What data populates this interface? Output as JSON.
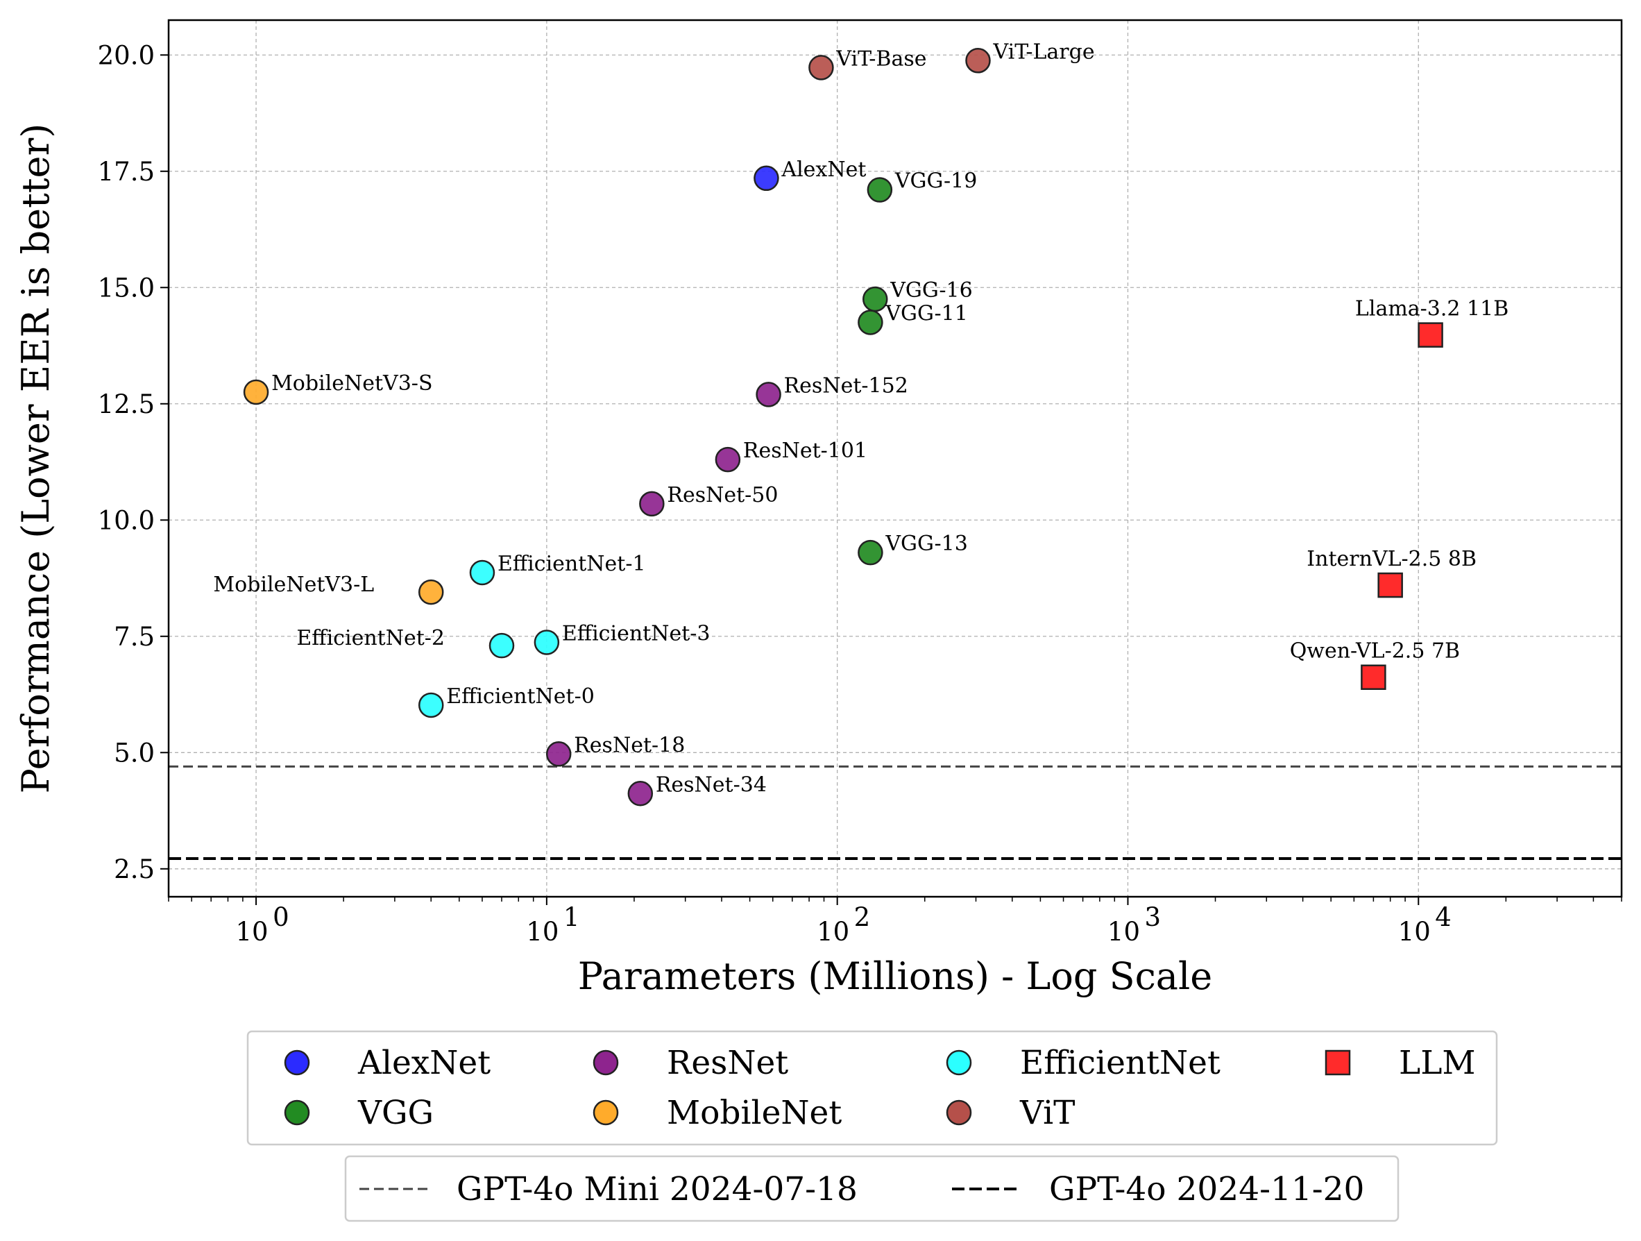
{
  "chart_data": {
    "type": "scatter",
    "title": "",
    "xlabel": "Parameters (Millions) - Log Scale",
    "ylabel": "Performance (Lower EER is better)",
    "x_scale": "log",
    "xlim": [
      0.5,
      50000
    ],
    "ylim": [
      1.9,
      20.75
    ],
    "x_ticks": [
      1,
      10,
      100,
      1000,
      10000
    ],
    "x_tick_labels": [
      {
        "base": "10",
        "exp": "0"
      },
      {
        "base": "10",
        "exp": "1"
      },
      {
        "base": "10",
        "exp": "2"
      },
      {
        "base": "10",
        "exp": "3"
      },
      {
        "base": "10",
        "exp": "4"
      }
    ],
    "y_ticks": [
      2.5,
      5.0,
      7.5,
      10.0,
      12.5,
      15.0,
      17.5,
      20.0
    ],
    "y_tick_labels": [
      "2.5",
      "5.0",
      "7.5",
      "10.0",
      "12.5",
      "15.0",
      "17.5",
      "20.0"
    ],
    "grid": true,
    "series": [
      {
        "name": "AlexNet",
        "color": "#2b2bff",
        "marker": "circle",
        "points": [
          {
            "label": "AlexNet",
            "x": 57,
            "y": 17.35
          }
        ]
      },
      {
        "name": "VGG",
        "color": "#228b22",
        "marker": "circle",
        "points": [
          {
            "label": "VGG-19",
            "x": 140,
            "y": 17.1
          },
          {
            "label": "VGG-16",
            "x": 135,
            "y": 14.75
          },
          {
            "label": "VGG-11",
            "x": 130,
            "y": 14.25
          },
          {
            "label": "VGG-13",
            "x": 130,
            "y": 9.3
          }
        ]
      },
      {
        "name": "ResNet",
        "color": "#8e248e",
        "marker": "circle",
        "points": [
          {
            "label": "ResNet-152",
            "x": 58,
            "y": 12.7
          },
          {
            "label": "ResNet-101",
            "x": 42,
            "y": 11.3
          },
          {
            "label": "ResNet-50",
            "x": 23,
            "y": 10.35
          },
          {
            "label": "ResNet-18",
            "x": 11,
            "y": 4.97
          },
          {
            "label": "ResNet-34",
            "x": 21,
            "y": 4.12
          }
        ]
      },
      {
        "name": "MobileNet",
        "color": "#ffab2b",
        "marker": "circle",
        "points": [
          {
            "label": "MobileNetV3-S",
            "x": 1.0,
            "y": 12.75
          },
          {
            "label": "MobileNetV3-L",
            "x": 4.0,
            "y": 8.45,
            "label_side": "left"
          }
        ]
      },
      {
        "name": "EfficientNet",
        "color": "#2bffff",
        "marker": "circle",
        "points": [
          {
            "label": "EfficientNet-1",
            "x": 6.0,
            "y": 8.87
          },
          {
            "label": "EfficientNet-2",
            "x": 7.0,
            "y": 7.3,
            "label_side": "left"
          },
          {
            "label": "EfficientNet-3",
            "x": 10.0,
            "y": 7.37
          },
          {
            "label": "EfficientNet-0",
            "x": 4.0,
            "y": 6.02
          }
        ]
      },
      {
        "name": "ViT",
        "color": "#b5504a",
        "marker": "circle",
        "points": [
          {
            "label": "ViT-Base",
            "x": 88,
            "y": 19.73
          },
          {
            "label": "ViT-Large",
            "x": 305,
            "y": 19.88
          }
        ]
      },
      {
        "name": "LLM",
        "color": "#ff2b2b",
        "marker": "square",
        "points": [
          {
            "label": "Llama-3.2 11B",
            "x": 11000,
            "y": 13.98,
            "label_side": "above"
          },
          {
            "label": "InternVL-2.5 8B",
            "x": 8000,
            "y": 8.6,
            "label_side": "above"
          },
          {
            "label": "Qwen-VL-2.5 7B",
            "x": 7000,
            "y": 6.62,
            "label_side": "above"
          }
        ]
      }
    ],
    "reference_lines": [
      {
        "name": "GPT-4o Mini 2024-07-18",
        "y": 4.7,
        "color": "#444444",
        "style": "dashed"
      },
      {
        "name": "GPT-4o 2024-11-20",
        "y": 2.72,
        "color": "#000000",
        "style": "dashed"
      }
    ],
    "legend_order": [
      "AlexNet",
      "ResNet",
      "EfficientNet",
      "LLM",
      "VGG",
      "MobileNet",
      "ViT"
    ],
    "legend_placement": "below-center"
  }
}
